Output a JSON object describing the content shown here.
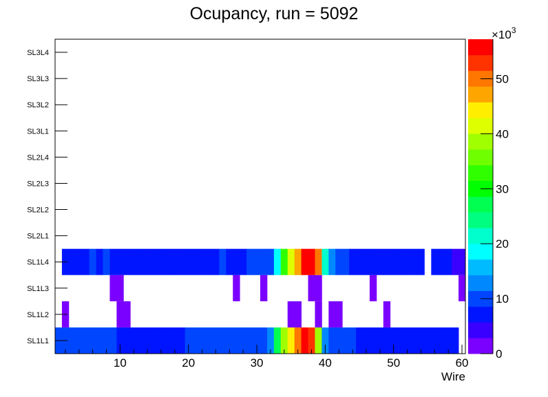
{
  "chart_data": {
    "type": "heatmap",
    "title": "Ocupancy, run = 5092",
    "xlabel": "Wire",
    "ylabel": "",
    "xlim": [
      0.5,
      60.5
    ],
    "x_ticks": [
      10,
      20,
      30,
      40,
      50,
      60
    ],
    "y_categories": [
      "SL1L1",
      "SL1L2",
      "SL1L3",
      "SL1L4",
      "SL2L1",
      "SL2L2",
      "SL2L3",
      "SL2L4",
      "SL3L1",
      "SL3L2",
      "SL3L3",
      "SL3L4"
    ],
    "z_range": [
      0,
      57200
    ],
    "z_ticks": [
      0,
      10,
      20,
      30,
      40,
      50
    ],
    "z_multiplier_label": "×10",
    "z_multiplier_exp": "3",
    "contour_levels": 20,
    "palette": [
      "#7a00ff",
      "#3a00ff",
      "#0015ff",
      "#0046ff",
      "#0088ff",
      "#00bbff",
      "#00ffff",
      "#00ffcc",
      "#00ff80",
      "#00ff50",
      "#00ff00",
      "#30ff00",
      "#70ff00",
      "#a0ff00",
      "#ddff00",
      "#ffee00",
      "#ffa500",
      "#ff7700",
      "#ff3300",
      "#ff0000"
    ],
    "rows": {
      "SL1L1": {
        "1": 8580,
        "2": 8580,
        "3": 8580,
        "4": 8580,
        "5": 8580,
        "6": 8580,
        "7": 8580,
        "8": 8580,
        "9": 8580,
        "10": 7150,
        "11": 7150,
        "12": 7150,
        "13": 7150,
        "14": 7150,
        "15": 7150,
        "16": 7150,
        "17": 7150,
        "18": 7150,
        "19": 7150,
        "20": 8580,
        "21": 8580,
        "22": 8580,
        "23": 8580,
        "24": 8580,
        "25": 8580,
        "26": 8580,
        "27": 8580,
        "28": 8580,
        "29": 8580,
        "30": 8580,
        "31": 8580,
        "32": 12870,
        "33": 27170,
        "34": 38610,
        "35": 44330,
        "36": 50050,
        "37": 55770,
        "38": 52910,
        "39": 38610,
        "40": 12870,
        "41": 8580,
        "42": 8580,
        "43": 8580,
        "44": 8580,
        "45": 7150,
        "46": 7150,
        "47": 7150,
        "48": 7150,
        "49": 7150,
        "50": 7150,
        "51": 7150,
        "52": 7150,
        "53": 7150,
        "54": 7150,
        "55": 7150,
        "56": 7150,
        "57": 7150,
        "58": 7150,
        "59": 7150
      },
      "SL1L2": {
        "2": 1430,
        "10": 1430,
        "11": 1430,
        "35": 1430,
        "36": 1430,
        "39": 1430,
        "41": 1430,
        "42": 1430,
        "49": 1430
      },
      "SL1L3": {
        "9": 1430,
        "10": 1430,
        "27": 1430,
        "31": 1430,
        "38": 1430,
        "39": 1430,
        "47": 1430,
        "60": 1430
      },
      "SL1L4": {
        "2": 7150,
        "3": 7150,
        "4": 7150,
        "5": 7150,
        "6": 8580,
        "7": 7150,
        "8": 8580,
        "9": 7150,
        "10": 7150,
        "11": 7150,
        "12": 7150,
        "13": 7150,
        "14": 7150,
        "15": 7150,
        "16": 7150,
        "17": 7150,
        "18": 7150,
        "19": 7150,
        "20": 7150,
        "21": 7150,
        "22": 7150,
        "23": 7150,
        "24": 7150,
        "25": 8580,
        "26": 7150,
        "27": 7150,
        "28": 7150,
        "29": 8580,
        "30": 8580,
        "31": 8580,
        "32": 8580,
        "33": 18590,
        "34": 32890,
        "35": 41470,
        "36": 47190,
        "37": 55770,
        "38": 55770,
        "39": 50050,
        "40": 21450,
        "41": 12870,
        "42": 8580,
        "43": 8580,
        "44": 7150,
        "45": 7150,
        "46": 7150,
        "47": 7150,
        "48": 7150,
        "49": 7150,
        "50": 7150,
        "51": 7150,
        "52": 7150,
        "53": 7150,
        "54": 7150,
        "56": 7150,
        "57": 7150,
        "58": 7150,
        "59": 4290,
        "60": 4290
      }
    }
  }
}
